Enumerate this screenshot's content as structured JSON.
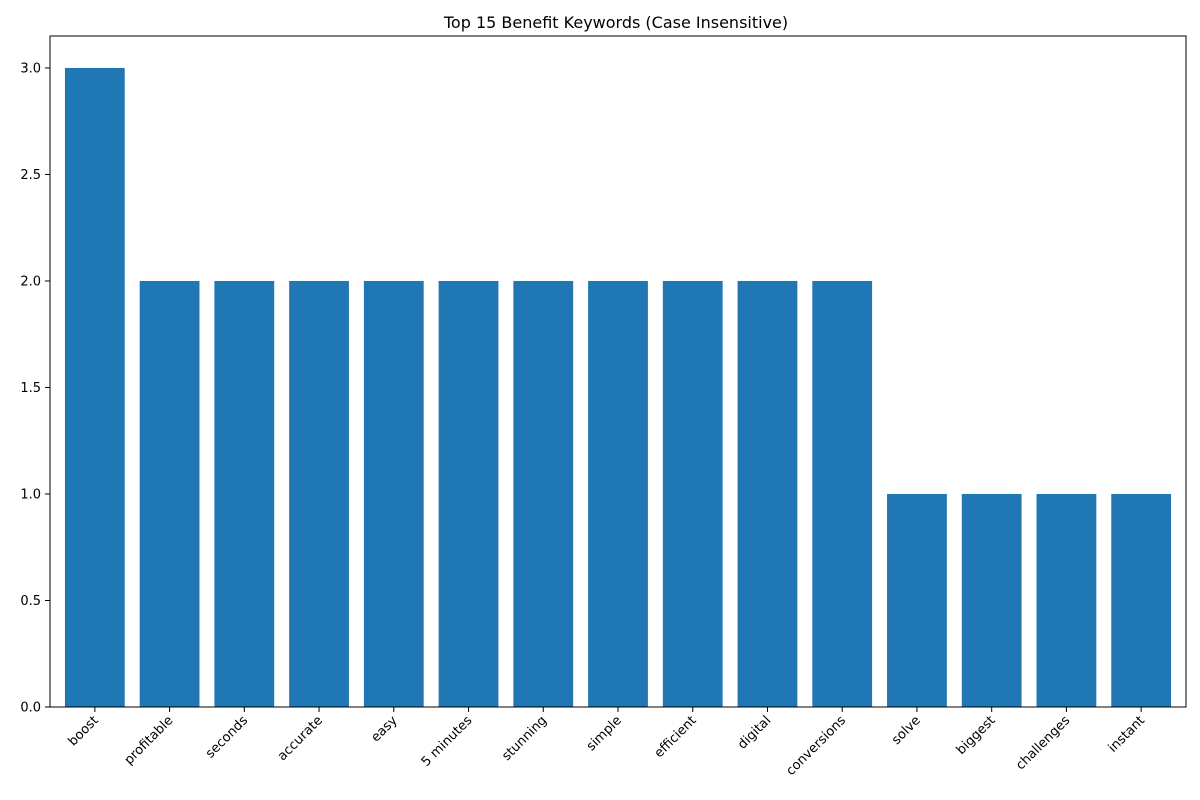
{
  "chart_data": {
    "type": "bar",
    "title": "Top 15 Benefit Keywords (Case Insensitive)",
    "xlabel": "",
    "ylabel": "",
    "categories": [
      "boost",
      "profitable",
      "seconds",
      "accurate",
      "easy",
      "5 minutes",
      "stunning",
      "simple",
      "efficient",
      "digital",
      "conversions",
      "solve",
      "biggest",
      "challenges",
      "instant"
    ],
    "values": [
      3,
      2,
      2,
      2,
      2,
      2,
      2,
      2,
      2,
      2,
      2,
      1,
      1,
      1,
      1
    ],
    "ylim": [
      0,
      3.15
    ],
    "yticks": [
      "0.0",
      "0.5",
      "1.0",
      "1.5",
      "2.0",
      "2.5",
      "3.0"
    ],
    "grid": false,
    "bar_color": "#1f77b4",
    "xtick_rotation": "45 degrees, right-aligned"
  }
}
